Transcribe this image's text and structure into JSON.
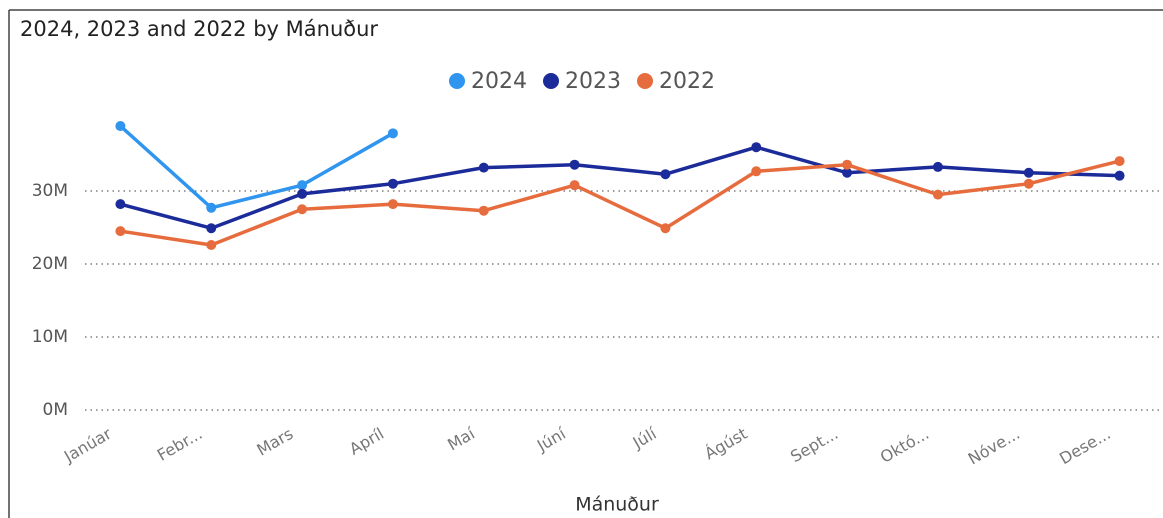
{
  "chart_data": {
    "type": "line",
    "title": "2024, 2023 and 2022 by Mánuður",
    "x_label": "Mánuður",
    "categories": [
      "Janúar",
      "Febr...",
      "Mars",
      "Apríl",
      "Maí",
      "Júní",
      "Júlí",
      "Ágúst",
      "Sept...",
      "Októ...",
      "Nóve...",
      "Dese..."
    ],
    "series": [
      {
        "name": "2024",
        "color": "#2f95ee",
        "values": [
          38900000,
          27700000,
          30800000,
          37900000,
          null,
          null,
          null,
          null,
          null,
          null,
          null,
          null
        ]
      },
      {
        "name": "2023",
        "color": "#1c2b9a",
        "values": [
          28200000,
          24900000,
          29600000,
          31000000,
          33200000,
          33600000,
          32300000,
          36000000,
          32500000,
          33300000,
          32500000,
          32100000
        ]
      },
      {
        "name": "2022",
        "color": "#e66c3d",
        "values": [
          24500000,
          22600000,
          27500000,
          28200000,
          27300000,
          30800000,
          24900000,
          32700000,
          33600000,
          29500000,
          31000000,
          34100000
        ]
      }
    ],
    "ylim": [
      0,
      42000000
    ],
    "yticks": [
      {
        "value": 0,
        "label": "0M"
      },
      {
        "value": 10000000,
        "label": "10M"
      },
      {
        "value": 20000000,
        "label": "20M"
      },
      {
        "value": 30000000,
        "label": "30M"
      }
    ],
    "grid": true,
    "legend": "top"
  }
}
